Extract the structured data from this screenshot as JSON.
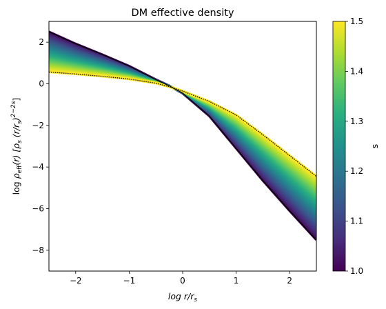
{
  "chart_data": {
    "type": "line",
    "title": "DM effective density",
    "xlabel": "log r/r_s",
    "ylabel": "log ρ_eff(r) [ρ_s (r/r_s)^(2−2s)]",
    "xlim": [
      -2.5,
      2.5
    ],
    "ylim": [
      -9.0,
      3.0
    ],
    "x_ticks": [
      -2,
      -1,
      0,
      1,
      2
    ],
    "x_tick_labels": [
      "−2",
      "−1",
      "0",
      "1",
      "2"
    ],
    "y_ticks": [
      2,
      0,
      -2,
      -4,
      -6,
      -8
    ],
    "y_tick_labels": [
      "2",
      "0",
      "−2",
      "−4",
      "−6",
      "−8"
    ],
    "colormap": "viridis",
    "s_range": [
      1.0,
      1.5
    ],
    "x": [
      -2.5,
      -2.0,
      -1.5,
      -1.0,
      -0.5,
      -0.25,
      0.0,
      0.5,
      1.0,
      1.5,
      2.0,
      2.5
    ],
    "series": [
      {
        "s": 1.0,
        "values": [
          2.5,
          1.92,
          1.4,
          0.85,
          0.2,
          -0.1,
          -0.45,
          -1.55,
          -3.1,
          -4.65,
          -6.1,
          -7.5
        ]
      },
      {
        "s": 1.5,
        "values": [
          0.57,
          0.47,
          0.36,
          0.23,
          0.03,
          -0.14,
          -0.35,
          -0.85,
          -1.5,
          -2.45,
          -3.45,
          -4.45
        ]
      }
    ],
    "grid": false,
    "legend": "none",
    "colorbar": {
      "label": "s",
      "ticks": [
        1.0,
        1.1,
        1.2,
        1.3,
        1.4,
        1.5
      ],
      "tick_labels": [
        "1.0",
        "1.1",
        "1.2",
        "1.3",
        "1.4",
        "1.5"
      ]
    }
  }
}
